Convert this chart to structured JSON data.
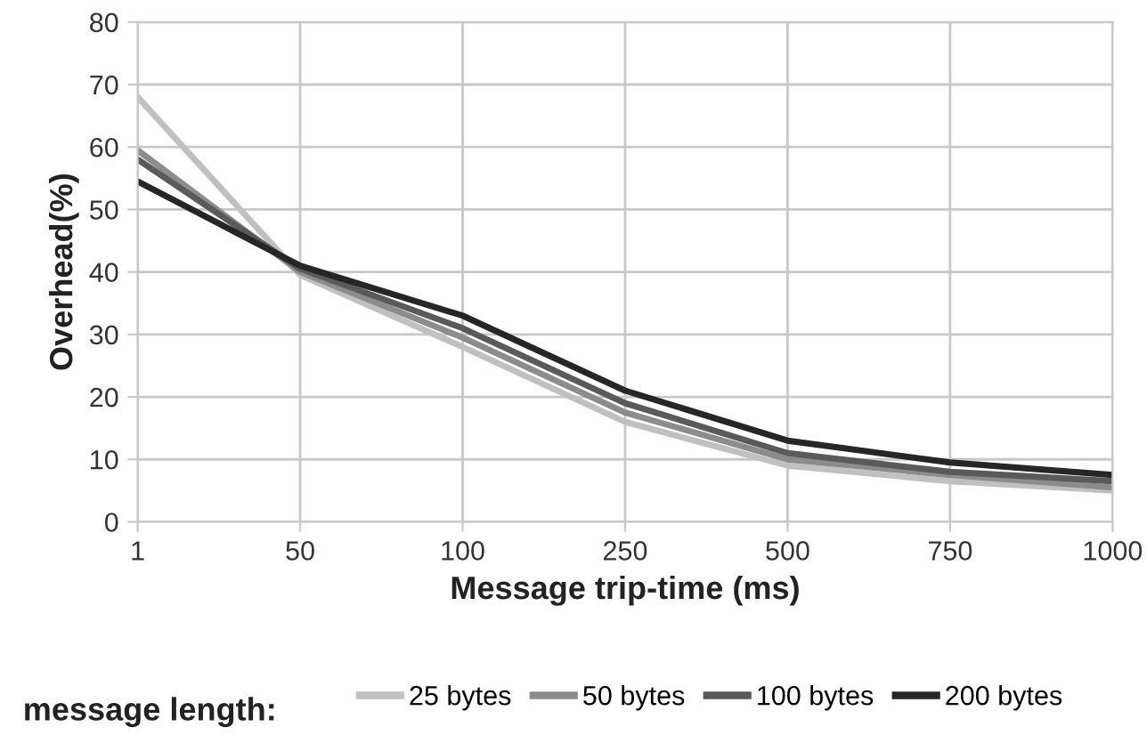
{
  "chart_data": {
    "type": "line",
    "xlabel": "Message trip-time (ms)",
    "ylabel": "Overhead(%)",
    "legend_title": "message length:",
    "categories": [
      "1",
      "50",
      "100",
      "250",
      "500",
      "750",
      "1000"
    ],
    "series": [
      {
        "name": "25 bytes",
        "color": "#c0c0c0",
        "values": [
          68,
          39.5,
          28,
          16,
          9,
          6.5,
          5
        ]
      },
      {
        "name": "50 bytes",
        "color": "#8c8c8c",
        "values": [
          59.5,
          40,
          29.5,
          17.5,
          10,
          7.5,
          5.5
        ]
      },
      {
        "name": "100 bytes",
        "color": "#5a5a5a",
        "values": [
          58,
          40.5,
          31,
          19,
          11,
          8,
          6.5
        ]
      },
      {
        "name": "200 bytes",
        "color": "#262626",
        "values": [
          54.5,
          41,
          33,
          21,
          13,
          9.5,
          7.5
        ]
      }
    ],
    "ylim": [
      0,
      80
    ],
    "yticks": [
      0,
      10,
      20,
      30,
      40,
      50,
      60,
      70,
      80
    ],
    "grid": true,
    "legend": "bottom"
  }
}
